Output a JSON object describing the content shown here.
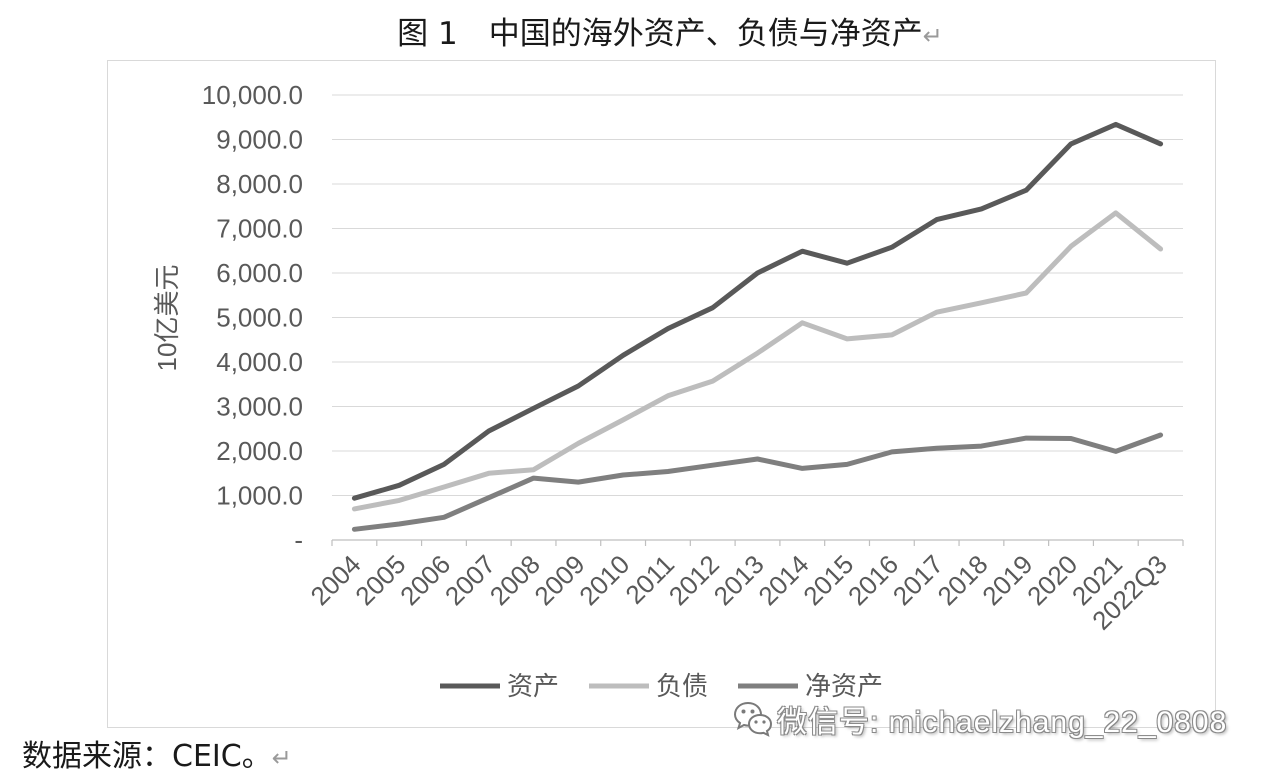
{
  "title_mark": "↵",
  "chart_data": {
    "type": "line",
    "title": "图 1　中国的海外资产、负债与净资产",
    "ylabel": "10亿美元",
    "categories": [
      "2004",
      "2005",
      "2006",
      "2007",
      "2008",
      "2009",
      "2010",
      "2011",
      "2012",
      "2013",
      "2014",
      "2015",
      "2016",
      "2017",
      "2018",
      "2019",
      "2020",
      "2021",
      "2022Q3"
    ],
    "ylim": [
      0,
      10000
    ],
    "yticks": [
      0,
      1000,
      2000,
      3000,
      4000,
      5000,
      6000,
      7000,
      8000,
      9000,
      10000
    ],
    "ytick_labels": [
      "-",
      "1,000.0",
      "2,000.0",
      "3,000.0",
      "4,000.0",
      "5,000.0",
      "6,000.0",
      "7,000.0",
      "8,000.0",
      "9,000.0",
      "10,000.0"
    ],
    "grid": true,
    "legend": "bottom",
    "series": [
      {
        "name": "资产",
        "color": "#595959",
        "values": [
          940,
          1230,
          1700,
          2450,
          2960,
          3460,
          4150,
          4750,
          5220,
          6000,
          6490,
          6220,
          6580,
          7200,
          7440,
          7860,
          8900,
          9340,
          8900
        ]
      },
      {
        "name": "负债",
        "color": "#bdbdbd",
        "values": [
          700,
          890,
          1190,
          1500,
          1580,
          2170,
          2700,
          3240,
          3570,
          4200,
          4880,
          4520,
          4610,
          5120,
          5330,
          5550,
          6600,
          7350,
          6540
        ]
      },
      {
        "name": "净资产",
        "color": "#7f7f7f",
        "values": [
          240,
          360,
          510,
          950,
          1390,
          1300,
          1460,
          1540,
          1680,
          1820,
          1610,
          1700,
          1980,
          2060,
          2110,
          2290,
          2280,
          1990,
          2360
        ]
      }
    ]
  },
  "source": {
    "text": "数据来源：CEIC。",
    "mark": "↵"
  },
  "watermark": {
    "icon": "wechat-icon",
    "text": "微信号: michaelzhang_22_0808"
  }
}
